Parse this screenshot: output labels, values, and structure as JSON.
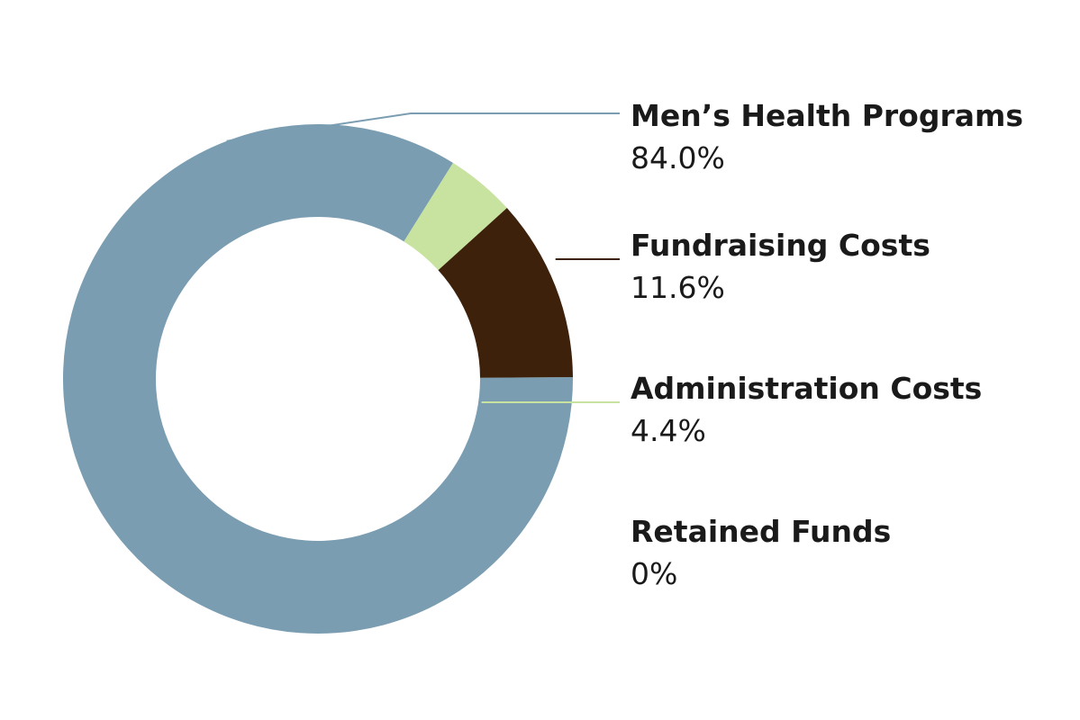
{
  "chart_data": {
    "type": "pie",
    "donut": true,
    "start_angle_deg": 58,
    "direction": "counterclockwise",
    "slices": [
      {
        "label": "Men’s Health Programs",
        "value": 84.0,
        "display": "84.0%",
        "color": "#7a9db2"
      },
      {
        "label": "Fundraising Costs",
        "value": 11.6,
        "display": "11.6%",
        "color": "#3e210b"
      },
      {
        "label": "Administration Costs",
        "value": 4.4,
        "display": "4.4%",
        "color": "#c8e3a0"
      },
      {
        "label": "Retained Funds",
        "value": 0,
        "display": "0%",
        "color": "#ffffff"
      }
    ],
    "legend_position": "right"
  }
}
